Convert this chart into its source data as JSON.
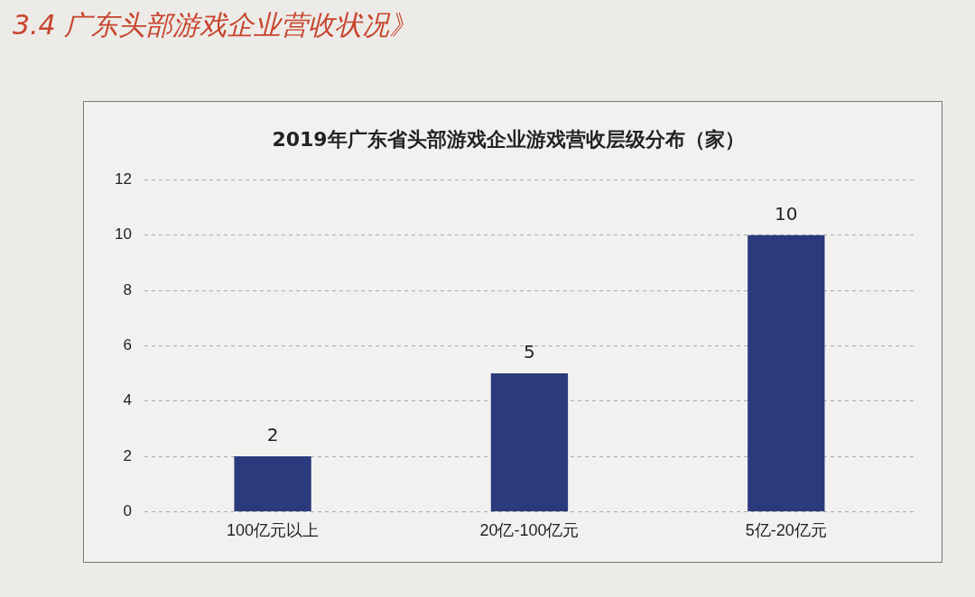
{
  "chart_data": {
    "type": "bar",
    "title": "2019年广东省头部游戏企业游戏营收层级分布（家）",
    "annotations": [
      "3.4 广东头部游戏企业营收状况》"
    ],
    "categories": [
      "100亿元以上",
      "20亿-100亿元",
      "5亿-20亿元"
    ],
    "values": [
      2,
      5,
      10
    ],
    "color": "#2b3a7c",
    "ylim": [
      0,
      12
    ],
    "yticks": [
      0,
      2,
      4,
      6,
      8,
      10,
      12
    ],
    "grid": "y",
    "data_labels": true,
    "legend": false
  }
}
